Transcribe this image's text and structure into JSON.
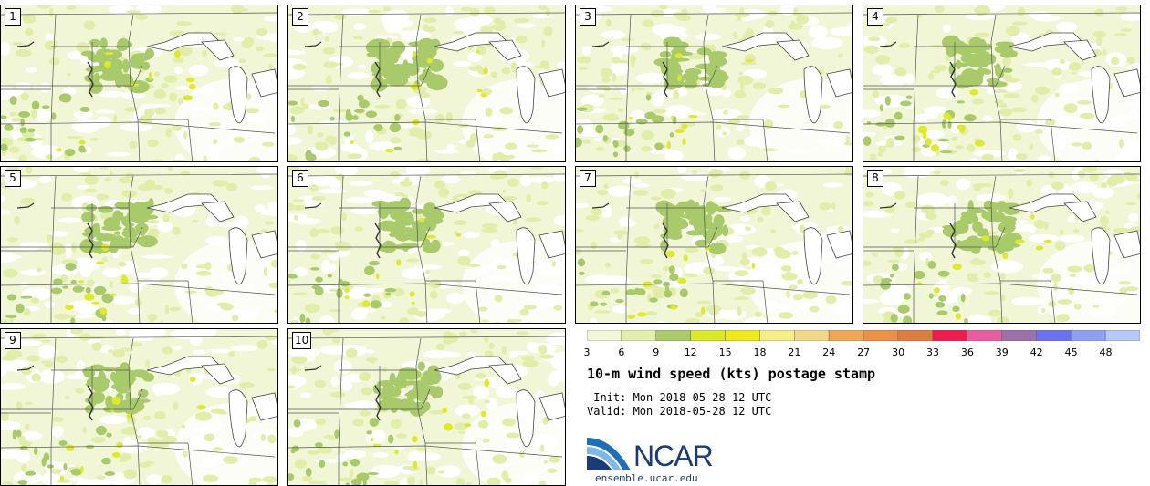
{
  "panels": [
    {
      "label": "1"
    },
    {
      "label": "2"
    },
    {
      "label": "3"
    },
    {
      "label": "4"
    },
    {
      "label": "5"
    },
    {
      "label": "6"
    },
    {
      "label": "7"
    },
    {
      "label": "8"
    },
    {
      "label": "9"
    },
    {
      "label": "10"
    }
  ],
  "colorbar": {
    "ticks": [
      "3",
      "6",
      "9",
      "12",
      "15",
      "18",
      "21",
      "24",
      "27",
      "30",
      "33",
      "36",
      "39",
      "42",
      "45",
      "48"
    ],
    "colors": [
      "#f3f7d8",
      "#e2efad",
      "#aacb6a",
      "#dce82a",
      "#f2e81e",
      "#f8ee86",
      "#f4d88a",
      "#f0a858",
      "#e8924c",
      "#e07c3e",
      "#ee1c4c",
      "#e85ca0",
      "#9c70a8",
      "#6a70f4",
      "#8ea0f4",
      "#b8c8f8"
    ]
  },
  "title": "10-m wind speed (kts) postage stamp",
  "init": " Init: Mon 2018-05-28 12 UTC",
  "valid": "Valid: Mon 2018-05-28 12 UTC",
  "logo": {
    "word": "NCAR",
    "url": "ensemble.ucar.edu"
  }
}
